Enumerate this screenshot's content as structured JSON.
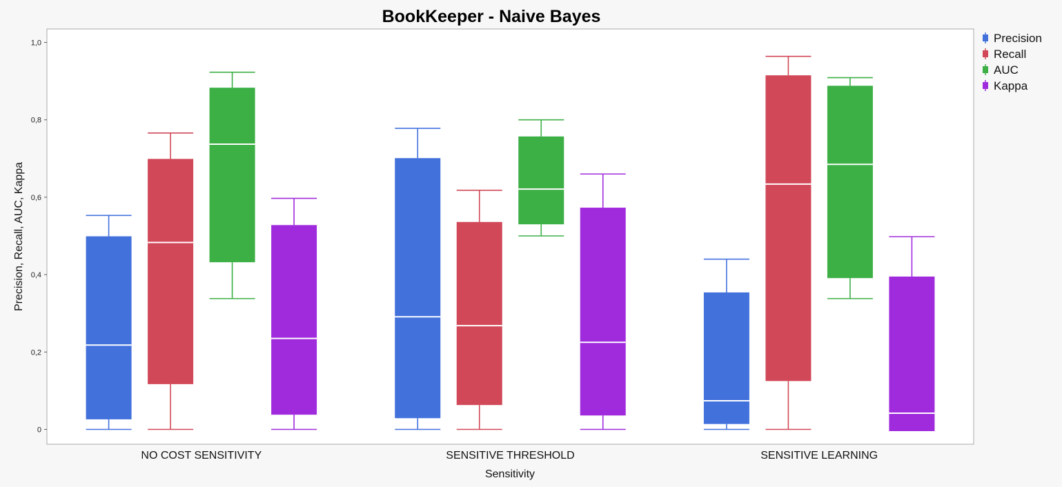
{
  "chart_data": {
    "type": "boxplot",
    "title": "BookKeeper - Naive Bayes",
    "xlabel": "Sensitivity",
    "ylabel": "Precision, Recall, AUC, Kappa",
    "ylim": [
      0,
      1.0
    ],
    "yticks": [
      "0",
      "0,2",
      "0,4",
      "0,6",
      "0,8",
      "1,0"
    ],
    "ytick_values": [
      0,
      0.2,
      0.4,
      0.6,
      0.8,
      1.0
    ],
    "grid": false,
    "legend_position": "top-right",
    "categories": [
      "NO COST SENSITIVITY",
      "SENSITIVE THRESHOLD",
      "SENSITIVE LEARNING"
    ],
    "series": [
      {
        "name": "Precision",
        "color": "#4271dc",
        "boxes": [
          {
            "min": 0.0,
            "q1": 0.026,
            "median": 0.218,
            "q3": 0.499,
            "max": 0.553
          },
          {
            "min": 0.0,
            "q1": 0.029,
            "median": 0.291,
            "q3": 0.701,
            "max": 0.778
          },
          {
            "min": 0.0,
            "q1": 0.014,
            "median": 0.074,
            "q3": 0.354,
            "max": 0.44
          }
        ]
      },
      {
        "name": "Recall",
        "color": "#d14858",
        "boxes": [
          {
            "min": 0.0,
            "q1": 0.117,
            "median": 0.483,
            "q3": 0.699,
            "max": 0.766
          },
          {
            "min": 0.0,
            "q1": 0.063,
            "median": 0.268,
            "q3": 0.536,
            "max": 0.618
          },
          {
            "min": 0.0,
            "q1": 0.125,
            "median": 0.634,
            "q3": 0.915,
            "max": 0.964
          }
        ]
      },
      {
        "name": "AUC",
        "color": "#3caf45",
        "boxes": [
          {
            "min": 0.338,
            "q1": 0.432,
            "median": 0.737,
            "q3": 0.883,
            "max": 0.923
          },
          {
            "min": 0.5,
            "q1": 0.53,
            "median": 0.621,
            "q3": 0.757,
            "max": 0.8
          },
          {
            "min": 0.338,
            "q1": 0.391,
            "median": 0.685,
            "q3": 0.888,
            "max": 0.909
          }
        ]
      },
      {
        "name": "Kappa",
        "color": "#a02bdd",
        "boxes": [
          {
            "min": 0.0,
            "q1": 0.038,
            "median": 0.235,
            "q3": 0.528,
            "max": 0.597
          },
          {
            "min": 0.0,
            "q1": 0.036,
            "median": 0.225,
            "q3": 0.573,
            "max": 0.66
          },
          {
            "min": -0.003,
            "q1": -0.002,
            "median": 0.042,
            "q3": 0.395,
            "max": 0.498
          }
        ]
      }
    ]
  }
}
